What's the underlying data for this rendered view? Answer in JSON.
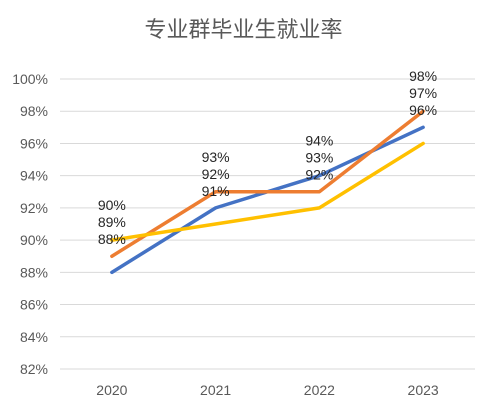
{
  "chart_data": {
    "type": "line",
    "title": "专业群毕业生就业率",
    "categories": [
      "2020",
      "2021",
      "2022",
      "2023"
    ],
    "y_ticks": [
      "82%",
      "84%",
      "86%",
      "88%",
      "90%",
      "92%",
      "94%",
      "96%",
      "98%",
      "100%"
    ],
    "ylim": [
      82,
      100
    ],
    "grid": true,
    "series": [
      {
        "color": "#4472C4",
        "values": [
          88,
          92,
          94,
          97
        ]
      },
      {
        "color": "#ED7D31",
        "values": [
          89,
          93,
          93,
          98
        ]
      },
      {
        "color": "#FFC000",
        "values": [
          90,
          91,
          92,
          96
        ]
      }
    ],
    "label_stacks": [
      [
        "90%",
        "89%",
        "88%"
      ],
      [
        "93%",
        "92%",
        "91%"
      ],
      [
        "94%",
        "93%",
        "92%"
      ],
      [
        "98%",
        "97%",
        "96%"
      ]
    ]
  }
}
